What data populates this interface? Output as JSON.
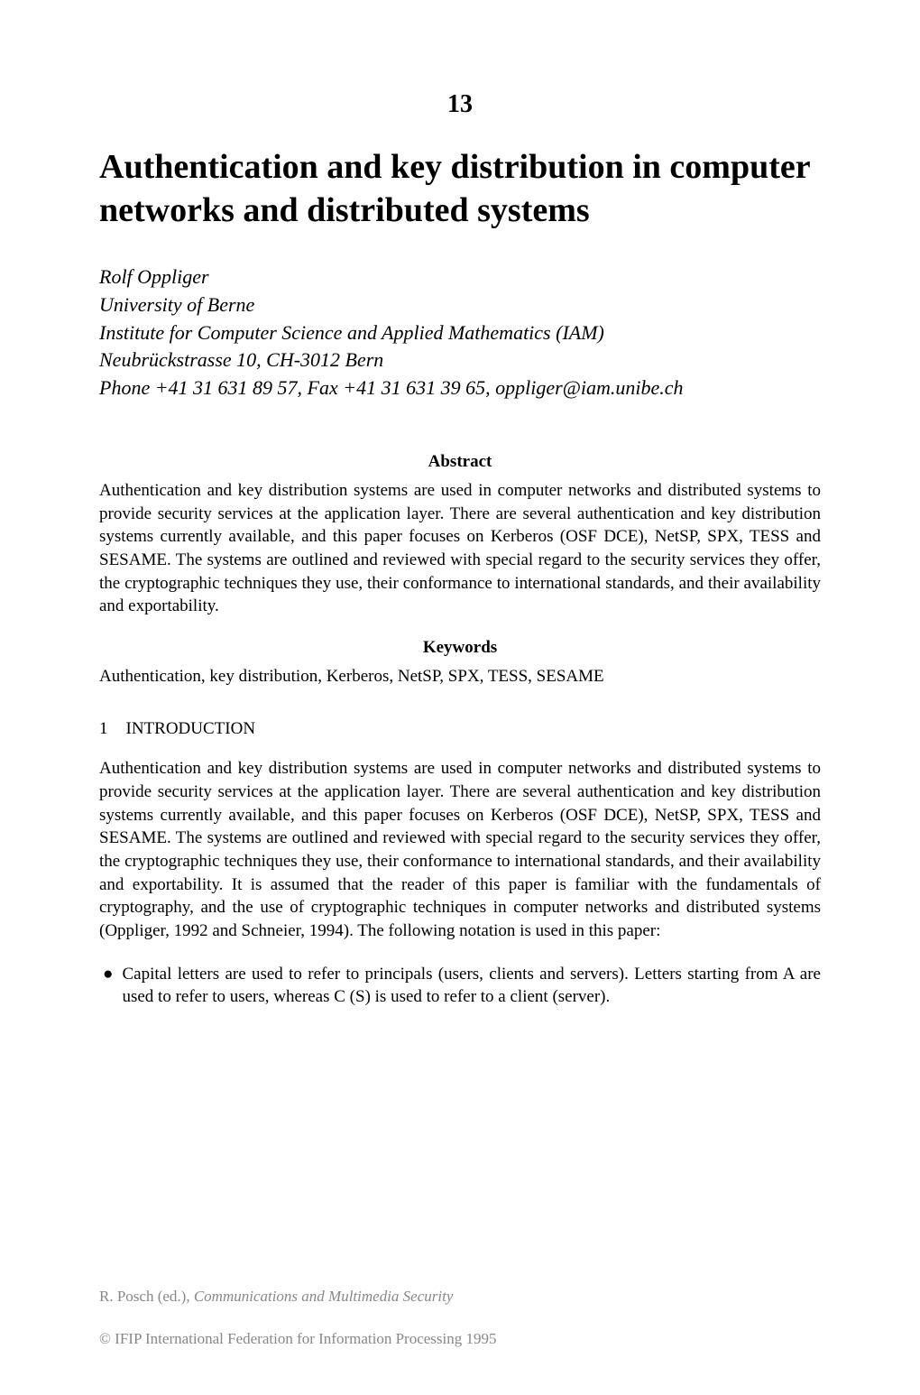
{
  "chapter_number": "13",
  "title": "Authentication and key distribution in computer networks and distributed systems",
  "author": {
    "name": "Rolf Oppliger",
    "affiliation1": "University of Berne",
    "affiliation2": "Institute for Computer Science and Applied Mathematics (IAM)",
    "address": "Neubrückstrasse 10, CH-3012 Bern",
    "contact": "Phone +41 31 631 89 57, Fax +41 31 631 39 65, oppliger@iam.unibe.ch"
  },
  "abstract": {
    "heading": "Abstract",
    "text": "Authentication and key distribution systems are used in computer networks and distributed systems to provide security services at the application layer. There are several authentication and key distribution systems currently available, and this paper focuses on Kerberos (OSF DCE), NetSP, SPX, TESS and SESAME. The systems are outlined and reviewed with special regard to the security services they offer, the cryptographic techniques they use, their conformance to international standards, and their availability and exportability."
  },
  "keywords": {
    "heading": "Keywords",
    "text": "Authentication, key distribution, Kerberos, NetSP, SPX, TESS, SESAME"
  },
  "section1": {
    "number": "1",
    "heading": "INTRODUCTION",
    "text": "Authentication and key distribution systems are used in computer networks and distributed systems to provide security services at the application layer. There are several authentication and key distribution systems currently available, and this paper focuses on Kerberos (OSF DCE), NetSP, SPX, TESS and SESAME. The systems are outlined and reviewed with special regard to the security services they offer, the cryptographic techniques they use, their conformance to international standards, and their availability and exportability. It is assumed that the reader of this paper is familiar with the fundamentals of cryptography, and the use of cryptographic techniques in computer networks and distributed systems (Oppliger, 1992 and Schneier, 1994). The following notation is used in this paper:",
    "bullet1": "Capital letters are used to refer to principals (users, clients and servers). Letters starting from A are used to refer to users, whereas C (S) is used to refer to a client (server)."
  },
  "footer": {
    "editor": "R. Posch (ed.), ",
    "book_title": "Communications and Multimedia Security",
    "copyright": "© IFIP International Federation for Information Processing 1995"
  }
}
